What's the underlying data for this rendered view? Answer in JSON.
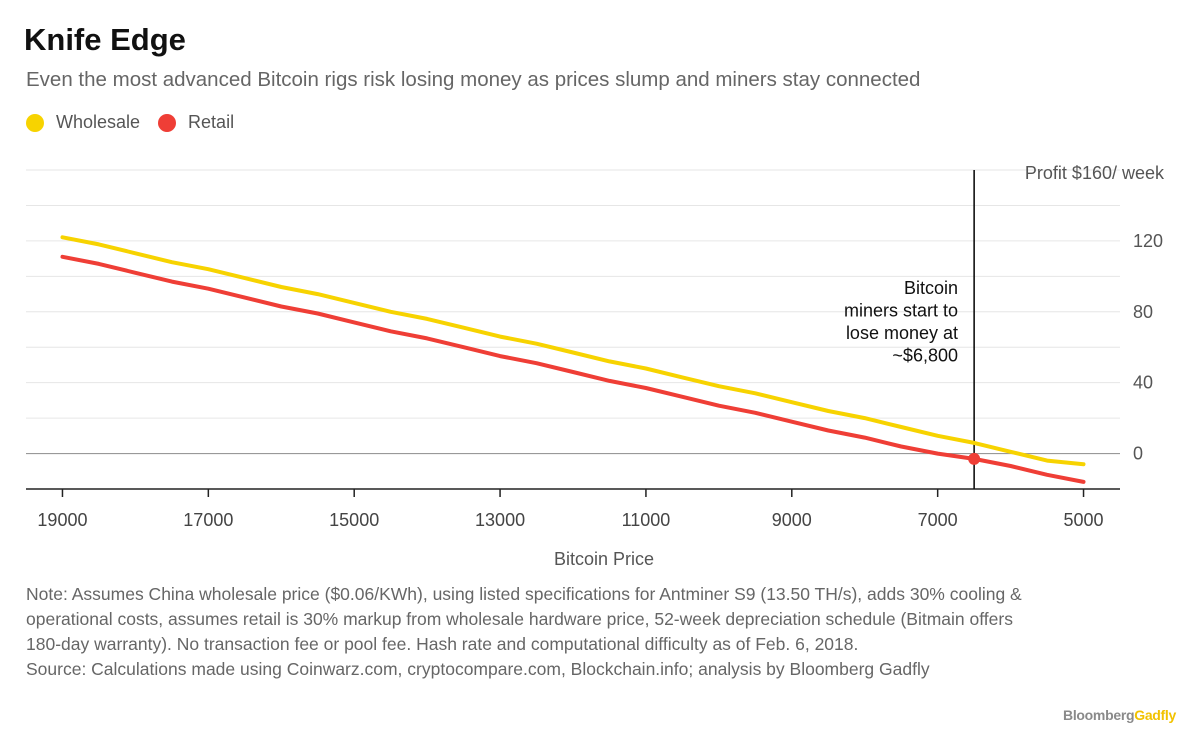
{
  "header": {
    "title": "Knife Edge",
    "subtitle": "Even the most advanced Bitcoin rigs risk losing money as prices slump and miners stay connected"
  },
  "legend": [
    {
      "name": "Wholesale",
      "color": "#f7d300"
    },
    {
      "name": "Retail",
      "color": "#ef3e36"
    }
  ],
  "footer": {
    "note": "Note: Assumes China wholesale price ($0.06/KWh), using listed specifications for Antminer S9 (13.50 TH/s), adds 30% cooling & operational costs, assumes retail is 30% markup from wholesale hardware price, 52-week depreciation schedule (Bitmain offers 180-day warranty). No transaction fee or pool fee. Hash rate and computational difficulty as of Feb. 6, 2018.",
    "source": "Source: Calculations made using Coinwarz.com, cryptocompare.com, Blockchain.info; analysis by Bloomberg Gadfly",
    "brand_part1": "Bloomberg",
    "brand_part2": "Gadfly"
  },
  "chart_data": {
    "type": "line",
    "title": "Knife Edge",
    "xlabel": "Bitcoin Price",
    "ylabel": "Profit $160/ week",
    "x_reversed": true,
    "xlim": [
      19500,
      4500
    ],
    "ylim": [
      -20,
      160
    ],
    "x_ticks": [
      19000,
      17000,
      15000,
      13000,
      11000,
      9000,
      7000,
      5000
    ],
    "y_ticks": [
      0,
      40,
      80,
      120
    ],
    "y_top_label": "Profit $160/ week",
    "grid": true,
    "series": [
      {
        "name": "Wholesale",
        "color": "#f7d300",
        "x": [
          19000,
          18500,
          18000,
          17500,
          17000,
          16500,
          16000,
          15500,
          15000,
          14500,
          14000,
          13500,
          13000,
          12500,
          12000,
          11500,
          11000,
          10500,
          10000,
          9500,
          9000,
          8500,
          8000,
          7500,
          7000,
          6500,
          6000,
          5500,
          5000
        ],
        "y": [
          122,
          118,
          113,
          108,
          104,
          99,
          94,
          90,
          85,
          80,
          76,
          71,
          66,
          62,
          57,
          52,
          48,
          43,
          38,
          34,
          29,
          24,
          20,
          15,
          10,
          6,
          1,
          -4,
          -6
        ]
      },
      {
        "name": "Retail",
        "color": "#ef3e36",
        "x": [
          19000,
          18500,
          18000,
          17500,
          17000,
          16500,
          16000,
          15500,
          15000,
          14500,
          14000,
          13500,
          13000,
          12500,
          12000,
          11500,
          11000,
          10500,
          10000,
          9500,
          9000,
          8500,
          8000,
          7500,
          7000,
          6500,
          6000,
          5500,
          5000
        ],
        "y": [
          111,
          107,
          102,
          97,
          93,
          88,
          83,
          79,
          74,
          69,
          65,
          60,
          55,
          51,
          46,
          41,
          37,
          32,
          27,
          23,
          18,
          13,
          9,
          4,
          0,
          -3,
          -7,
          -12,
          -16
        ]
      }
    ],
    "annotations": [
      {
        "x": 6500,
        "lines": [
          "Bitcoin",
          "miners start to",
          "lose money at",
          "~$6,800"
        ],
        "marker_y": -3,
        "marker_color": "#ef3e36"
      }
    ]
  }
}
